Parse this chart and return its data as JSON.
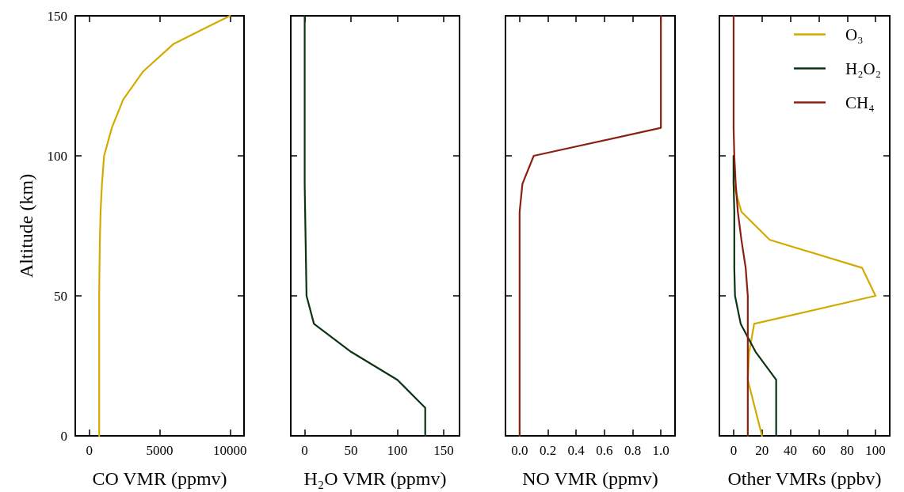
{
  "chart_data": [
    {
      "type": "line",
      "xlabel": "CO VMR (ppmv)",
      "ylabel": "Altitude (km)",
      "xlim": [
        -1000,
        11000
      ],
      "xticks": [
        0,
        5000,
        10000
      ],
      "ylim": [
        0,
        150
      ],
      "yticks": [
        0,
        50,
        100,
        150
      ],
      "marker": "none",
      "line_style": "solid",
      "grid": false,
      "legend": false,
      "series": [
        {
          "color": "#d4aa00",
          "x": [
            700,
            700,
            700,
            700,
            700,
            700,
            720,
            750,
            800,
            900,
            1050,
            1600,
            2400,
            3800,
            6000,
            10000
          ],
          "values": [
            0,
            10,
            20,
            30,
            40,
            50,
            60,
            70,
            80,
            90,
            100,
            110,
            120,
            130,
            140,
            150
          ]
        }
      ]
    },
    {
      "type": "line",
      "xlabel": "H₂O VMR (ppmv)",
      "xlim": [
        -15,
        167
      ],
      "xticks": [
        0,
        50,
        100,
        150
      ],
      "ylim": [
        0,
        150
      ],
      "yticks": [
        0,
        50,
        100,
        150
      ],
      "tick_labels": "x",
      "marker": "none",
      "line_style": "solid",
      "grid": false,
      "legend": false,
      "series": [
        {
          "color": "#0d3315",
          "x": [
            130,
            130,
            100,
            50,
            10,
            2,
            1.5,
            1,
            0.5,
            0,
            0,
            0,
            0,
            0,
            0,
            0
          ],
          "values": [
            0,
            10,
            20,
            30,
            40,
            50,
            60,
            70,
            80,
            90,
            100,
            110,
            120,
            130,
            140,
            150
          ]
        }
      ]
    },
    {
      "type": "line",
      "xlabel": "NO VMR (ppmv)",
      "xlim": [
        -0.1,
        1.1
      ],
      "xticks": [
        {
          "value": 0,
          "label": "0.0"
        },
        0.2,
        0.4,
        0.6,
        0.8,
        {
          "value": 1,
          "label": "1.0"
        }
      ],
      "ylim": [
        0,
        150
      ],
      "yticks": [
        0,
        50,
        100,
        150
      ],
      "tick_labels": "x",
      "marker": "none",
      "line_style": "solid",
      "grid": false,
      "legend": false,
      "series": [
        {
          "color": "#8b2010",
          "x": [
            0,
            0,
            0,
            0,
            0,
            0,
            0,
            0,
            0,
            0.02,
            0.1,
            1,
            1,
            1,
            1,
            1
          ],
          "values": [
            0,
            10,
            20,
            30,
            40,
            50,
            60,
            70,
            80,
            90,
            100,
            110,
            120,
            130,
            140,
            150
          ]
        }
      ]
    },
    {
      "type": "line",
      "xlabel": "Other VMRs (ppbv)",
      "xlim": [
        -10,
        110
      ],
      "xticks": [
        0,
        20,
        40,
        60,
        80,
        100
      ],
      "ylim": [
        0,
        150
      ],
      "yticks": [
        0,
        50,
        100,
        150
      ],
      "tick_labels": "x",
      "marker": "none",
      "line_style": "solid",
      "grid": false,
      "legend": "top right",
      "series": [
        {
          "name": "O₃",
          "color": "#d4aa00",
          "x": [
            20,
            15,
            10,
            11,
            14.5,
            100,
            90.5,
            25.5,
            5.5,
            0,
            0
          ],
          "values": [
            0,
            10,
            20,
            30,
            40,
            50,
            60,
            70,
            80,
            90,
            100
          ]
        },
        {
          "name": "H₂O₂",
          "color": "#0d3315",
          "x": [
            30,
            30,
            30,
            15.5,
            5,
            1,
            0.5,
            0.5,
            0.5,
            0,
            0
          ],
          "values": [
            0,
            10,
            20,
            30,
            40,
            50,
            60,
            70,
            80,
            90,
            100
          ]
        },
        {
          "name": "CH₄",
          "color": "#8b2010",
          "x": [
            10,
            10,
            10,
            10,
            10,
            10,
            8.5,
            5.5,
            3,
            1.5,
            0.5,
            0,
            0,
            0,
            0,
            0
          ],
          "values": [
            0,
            10,
            20,
            30,
            40,
            50,
            60,
            70,
            80,
            90,
            100,
            110,
            120,
            130,
            140,
            150
          ]
        }
      ]
    }
  ]
}
